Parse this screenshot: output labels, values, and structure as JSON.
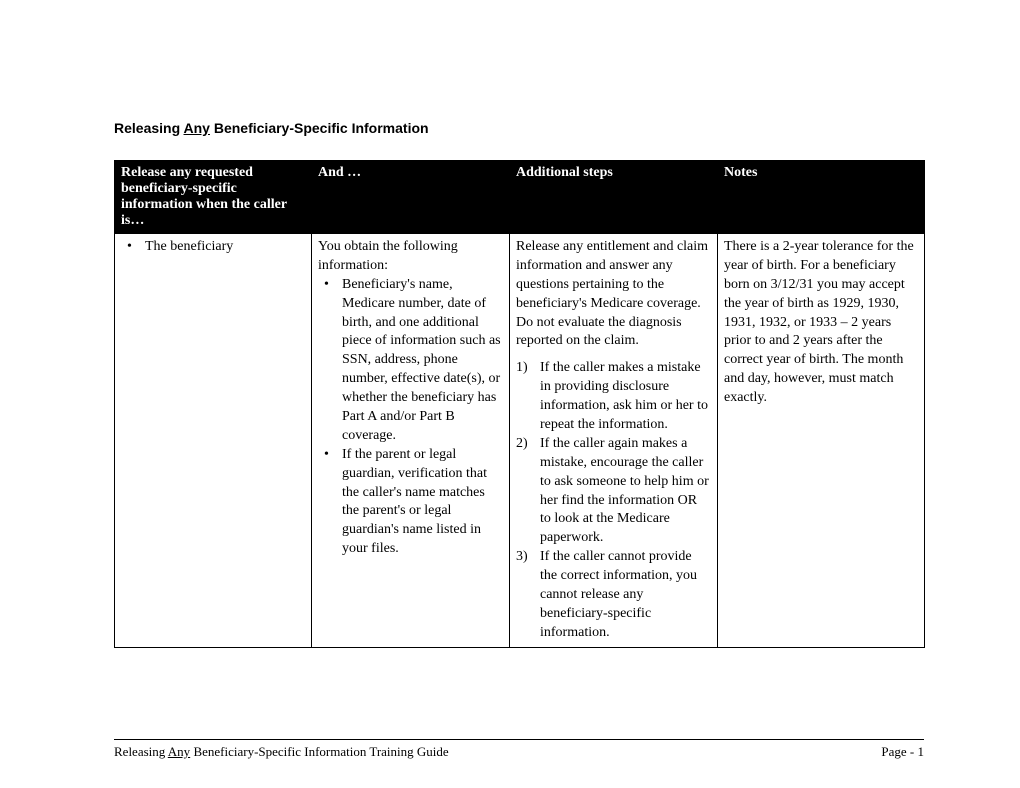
{
  "title": {
    "prefix": "Releasing ",
    "underlined": "Any",
    "suffix": " Beneficiary-Specific Information"
  },
  "headers": {
    "col1": "Release any requested beneficiary-specific information when the caller is…",
    "col2": "And …",
    "col3": "Additional steps",
    "col4": "Notes"
  },
  "row1": {
    "col1_bullet": "The beneficiary",
    "col2_intro": "You obtain the following information:",
    "col2_bullets": [
      "Beneficiary's name, Medicare number, date of birth, and one additional piece of information such as SSN, address, phone number, effective date(s), or whether the beneficiary has Part A and/or Part B coverage.",
      "If the parent or legal guardian, verification that the caller's name matches the parent's or legal guardian's name listed in your files."
    ],
    "col3_intro": "Release any entitlement and claim information and answer any questions pertaining to the beneficiary's Medicare coverage.  Do not evaluate the diagnosis reported on the claim.",
    "col3_list": [
      "If the caller makes a mistake in providing disclosure information, ask him or her to repeat the information.",
      "If the caller again makes a mistake, encourage the caller to ask someone to help him or her find the information OR to look at the Medicare paperwork.",
      "If the caller cannot provide the correct information, you cannot release any beneficiary-specific information."
    ],
    "col4_text": "There is a 2-year tolerance for the year of birth.  For a beneficiary born on 3/12/31 you may accept the year of birth as 1929, 1930, 1931, 1932, or 1933 – 2 years prior to and 2 years after the correct year of birth. The month and day, however, must match exactly."
  },
  "footer": {
    "prefix": "Releasing ",
    "underlined": "Any",
    "suffix": " Beneficiary-Specific Information Training Guide",
    "page": "Page - 1"
  }
}
